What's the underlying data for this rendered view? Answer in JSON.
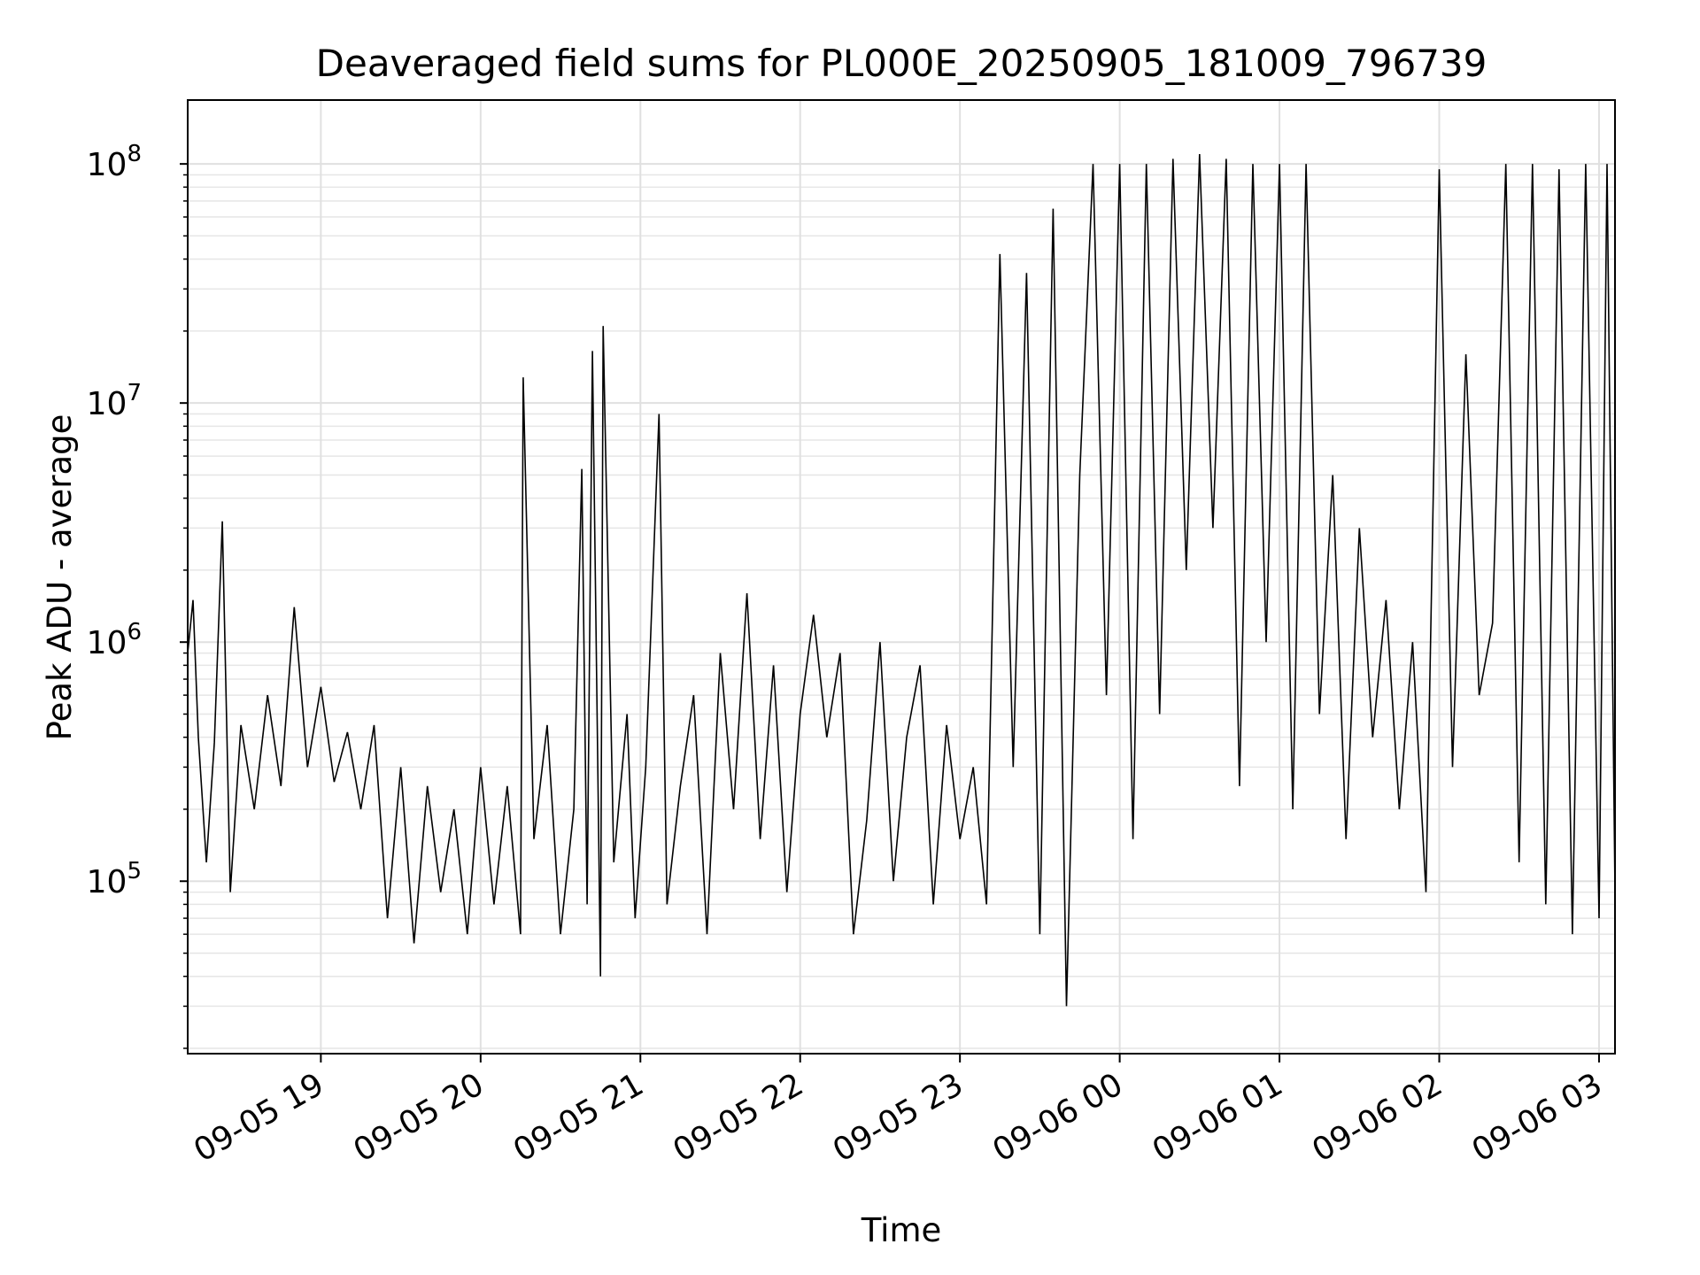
{
  "chart_data": {
    "type": "line",
    "title": "Deaveraged field sums for PL000E_20250905_181009_796739",
    "xlabel": "Time",
    "ylabel": "Peak ADU - average",
    "yscale": "log",
    "ylim": [
      19000,
      185000000
    ],
    "xlim": [
      "2025-09-05 18:10",
      "2025-09-06 03:06"
    ],
    "grid": true,
    "series_color": "#000000",
    "x_ticks": [
      {
        "value": "2025-09-05 19:00",
        "label": "09-05 19"
      },
      {
        "value": "2025-09-05 20:00",
        "label": "09-05 20"
      },
      {
        "value": "2025-09-05 21:00",
        "label": "09-05 21"
      },
      {
        "value": "2025-09-05 22:00",
        "label": "09-05 22"
      },
      {
        "value": "2025-09-05 23:00",
        "label": "09-05 23"
      },
      {
        "value": "2025-09-06 00:00",
        "label": "09-06 00"
      },
      {
        "value": "2025-09-06 01:00",
        "label": "09-06 01"
      },
      {
        "value": "2025-09-06 02:00",
        "label": "09-06 02"
      },
      {
        "value": "2025-09-06 03:00",
        "label": "09-06 03"
      }
    ],
    "y_ticks": [
      {
        "value": 100000,
        "base": "10",
        "exp": "5"
      },
      {
        "value": 1000000,
        "base": "10",
        "exp": "6"
      },
      {
        "value": 10000000,
        "base": "10",
        "exp": "7"
      },
      {
        "value": 100000000,
        "base": "10",
        "exp": "8"
      }
    ],
    "series": [
      {
        "values": [
          [
            "2025-09-05 18:10",
            900000
          ],
          [
            "2025-09-05 18:12",
            1500000
          ],
          [
            "2025-09-05 18:14",
            400000
          ],
          [
            "2025-09-05 18:17",
            120000
          ],
          [
            "2025-09-05 18:20",
            380000
          ],
          [
            "2025-09-05 18:23",
            3200000
          ],
          [
            "2025-09-05 18:26",
            90000
          ],
          [
            "2025-09-05 18:30",
            450000
          ],
          [
            "2025-09-05 18:35",
            200000
          ],
          [
            "2025-09-05 18:40",
            600000
          ],
          [
            "2025-09-05 18:45",
            250000
          ],
          [
            "2025-09-05 18:50",
            1400000
          ],
          [
            "2025-09-05 18:55",
            300000
          ],
          [
            "2025-09-05 19:00",
            650000
          ],
          [
            "2025-09-05 19:05",
            260000
          ],
          [
            "2025-09-05 19:10",
            420000
          ],
          [
            "2025-09-05 19:15",
            200000
          ],
          [
            "2025-09-05 19:20",
            450000
          ],
          [
            "2025-09-05 19:25",
            70000
          ],
          [
            "2025-09-05 19:30",
            300000
          ],
          [
            "2025-09-05 19:35",
            55000
          ],
          [
            "2025-09-05 19:40",
            250000
          ],
          [
            "2025-09-05 19:45",
            90000
          ],
          [
            "2025-09-05 19:50",
            200000
          ],
          [
            "2025-09-05 19:55",
            60000
          ],
          [
            "2025-09-05 20:00",
            300000
          ],
          [
            "2025-09-05 20:05",
            80000
          ],
          [
            "2025-09-05 20:10",
            250000
          ],
          [
            "2025-09-05 20:15",
            60000
          ],
          [
            "2025-09-05 20:16",
            12800000
          ],
          [
            "2025-09-05 20:20",
            150000
          ],
          [
            "2025-09-05 20:25",
            450000
          ],
          [
            "2025-09-05 20:30",
            60000
          ],
          [
            "2025-09-05 20:35",
            200000
          ],
          [
            "2025-09-05 20:38",
            5300000
          ],
          [
            "2025-09-05 20:40",
            80000
          ],
          [
            "2025-09-05 20:42",
            16500000
          ],
          [
            "2025-09-05 20:45",
            40000
          ],
          [
            "2025-09-05 20:46",
            21000000
          ],
          [
            "2025-09-05 20:50",
            120000
          ],
          [
            "2025-09-05 20:55",
            500000
          ],
          [
            "2025-09-05 20:58",
            70000
          ],
          [
            "2025-09-05 21:02",
            300000
          ],
          [
            "2025-09-05 21:07",
            9000000
          ],
          [
            "2025-09-05 21:10",
            80000
          ],
          [
            "2025-09-05 21:15",
            250000
          ],
          [
            "2025-09-05 21:20",
            600000
          ],
          [
            "2025-09-05 21:25",
            60000
          ],
          [
            "2025-09-05 21:30",
            900000
          ],
          [
            "2025-09-05 21:35",
            200000
          ],
          [
            "2025-09-05 21:40",
            1600000
          ],
          [
            "2025-09-05 21:45",
            150000
          ],
          [
            "2025-09-05 21:50",
            800000
          ],
          [
            "2025-09-05 21:55",
            90000
          ],
          [
            "2025-09-05 22:00",
            500000
          ],
          [
            "2025-09-05 22:05",
            1300000
          ],
          [
            "2025-09-05 22:10",
            400000
          ],
          [
            "2025-09-05 22:15",
            900000
          ],
          [
            "2025-09-05 22:20",
            60000
          ],
          [
            "2025-09-05 22:25",
            180000
          ],
          [
            "2025-09-05 22:30",
            1000000
          ],
          [
            "2025-09-05 22:35",
            100000
          ],
          [
            "2025-09-05 22:40",
            400000
          ],
          [
            "2025-09-05 22:45",
            800000
          ],
          [
            "2025-09-05 22:50",
            80000
          ],
          [
            "2025-09-05 22:55",
            450000
          ],
          [
            "2025-09-05 23:00",
            150000
          ],
          [
            "2025-09-05 23:05",
            300000
          ],
          [
            "2025-09-05 23:10",
            80000
          ],
          [
            "2025-09-05 23:15",
            42000000
          ],
          [
            "2025-09-05 23:20",
            300000
          ],
          [
            "2025-09-05 23:25",
            35000000
          ],
          [
            "2025-09-05 23:30",
            60000
          ],
          [
            "2025-09-05 23:35",
            65000000
          ],
          [
            "2025-09-05 23:40",
            30000
          ],
          [
            "2025-09-05 23:45",
            5000000
          ],
          [
            "2025-09-05 23:50",
            100000000
          ],
          [
            "2025-09-05 23:55",
            600000
          ],
          [
            "2025-09-06 00:00",
            100000000
          ],
          [
            "2025-09-06 00:05",
            150000
          ],
          [
            "2025-09-06 00:10",
            100000000
          ],
          [
            "2025-09-06 00:15",
            500000
          ],
          [
            "2025-09-06 00:20",
            105000000
          ],
          [
            "2025-09-06 00:25",
            2000000
          ],
          [
            "2025-09-06 00:30",
            110000000
          ],
          [
            "2025-09-06 00:35",
            3000000
          ],
          [
            "2025-09-06 00:40",
            105000000
          ],
          [
            "2025-09-06 00:45",
            250000
          ],
          [
            "2025-09-06 00:50",
            100000000
          ],
          [
            "2025-09-06 00:55",
            1000000
          ],
          [
            "2025-09-06 01:00",
            100000000
          ],
          [
            "2025-09-06 01:05",
            200000
          ],
          [
            "2025-09-06 01:10",
            100000000
          ],
          [
            "2025-09-06 01:15",
            500000
          ],
          [
            "2025-09-06 01:20",
            5000000
          ],
          [
            "2025-09-06 01:25",
            150000
          ],
          [
            "2025-09-06 01:30",
            3000000
          ],
          [
            "2025-09-06 01:35",
            400000
          ],
          [
            "2025-09-06 01:40",
            1500000
          ],
          [
            "2025-09-06 01:45",
            200000
          ],
          [
            "2025-09-06 01:50",
            1000000
          ],
          [
            "2025-09-06 01:55",
            90000
          ],
          [
            "2025-09-06 02:00",
            95000000
          ],
          [
            "2025-09-06 02:05",
            300000
          ],
          [
            "2025-09-06 02:10",
            16000000
          ],
          [
            "2025-09-06 02:15",
            600000
          ],
          [
            "2025-09-06 02:20",
            1200000
          ],
          [
            "2025-09-06 02:25",
            100000000
          ],
          [
            "2025-09-06 02:30",
            120000
          ],
          [
            "2025-09-06 02:35",
            100000000
          ],
          [
            "2025-09-06 02:40",
            80000
          ],
          [
            "2025-09-06 02:45",
            95000000
          ],
          [
            "2025-09-06 02:50",
            60000
          ],
          [
            "2025-09-06 02:55",
            100000000
          ],
          [
            "2025-09-06 03:00",
            70000
          ],
          [
            "2025-09-06 03:03",
            100000000
          ],
          [
            "2025-09-06 03:06",
            90000
          ]
        ]
      }
    ]
  }
}
